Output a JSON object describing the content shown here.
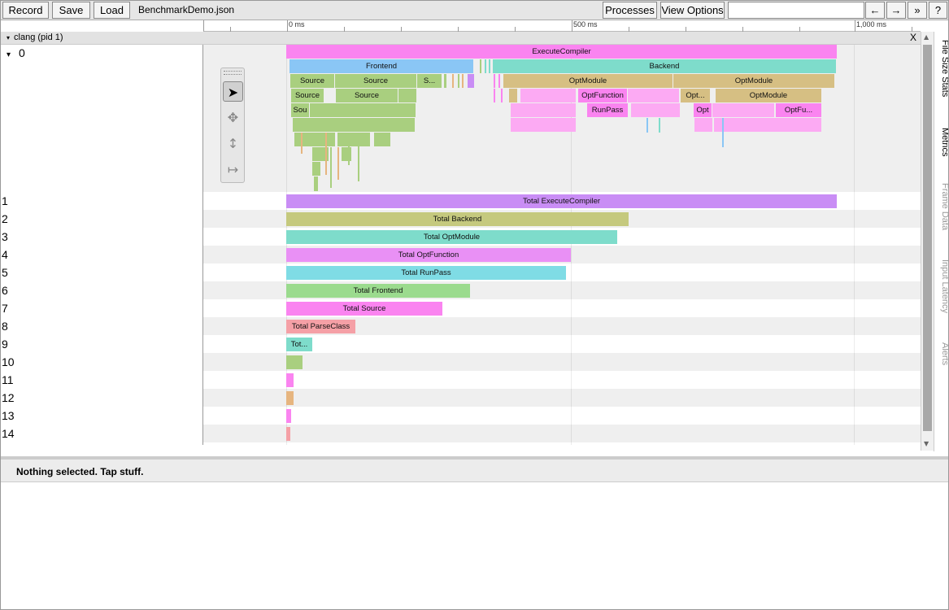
{
  "toolbar": {
    "record_label": "Record",
    "save_label": "Save",
    "load_label": "Load",
    "filename": "BenchmarkDemo.json",
    "processes_label": "Processes",
    "view_options_label": "View Options",
    "search_placeholder": "",
    "prev_label": "←",
    "next_label": "→",
    "more_label": "»",
    "help_label": "?"
  },
  "ruler": {
    "ticks": [
      "0 ms",
      "500 ms",
      "1,000 ms"
    ]
  },
  "process": {
    "label": "clang (pid 1)",
    "close_label": "X",
    "expand_glyph": "▾"
  },
  "thread0": {
    "label": "0",
    "expand_glyph": "▾",
    "slices": [
      "ExecuteCompiler",
      "Frontend",
      "Backend",
      "Source",
      "Source",
      "S...",
      "OptModule",
      "OptModule",
      "Source",
      "Source",
      "OptFunction",
      "Opt...",
      "OptModule",
      "Sou",
      "RunPass",
      "Opt",
      "OptFu..."
    ]
  },
  "counter_rows": [
    {
      "label": "1",
      "slice": "Total ExecuteCompiler",
      "color": "#c98df5"
    },
    {
      "label": "2",
      "slice": "Total Backend",
      "color": "#c5c97e"
    },
    {
      "label": "3",
      "slice": "Total OptModule",
      "color": "#7edccb"
    },
    {
      "label": "4",
      "slice": "Total OptFunction",
      "color": "#e990f5"
    },
    {
      "label": "5",
      "slice": "Total RunPass",
      "color": "#7fdce5"
    },
    {
      "label": "6",
      "slice": "Total Frontend",
      "color": "#9bdb8e"
    },
    {
      "label": "7",
      "slice": "Total Source",
      "color": "#fa84f0"
    },
    {
      "label": "8",
      "slice": "Total ParseClass",
      "color": "#f5a0a6"
    },
    {
      "label": "9",
      "slice": "Tot...",
      "color": "#7edccb"
    },
    {
      "label": "10",
      "slice": "",
      "color": "#a9cf7f"
    },
    {
      "label": "11",
      "slice": "",
      "color": "#fa84f0"
    },
    {
      "label": "12",
      "slice": "",
      "color": "#e6b57f"
    },
    {
      "label": "13",
      "slice": "",
      "color": "#fa84f0"
    },
    {
      "label": "14",
      "slice": "",
      "color": "#f5a0a6"
    }
  ],
  "side_tabs": [
    "File Size Stats",
    "Metrics",
    "Frame Data",
    "Input Latency",
    "Alerts"
  ],
  "tools": [
    "select-tool",
    "pan-tool",
    "zoom-tool",
    "timing-tool"
  ],
  "detail": {
    "status": "Nothing selected. Tap stuff."
  }
}
